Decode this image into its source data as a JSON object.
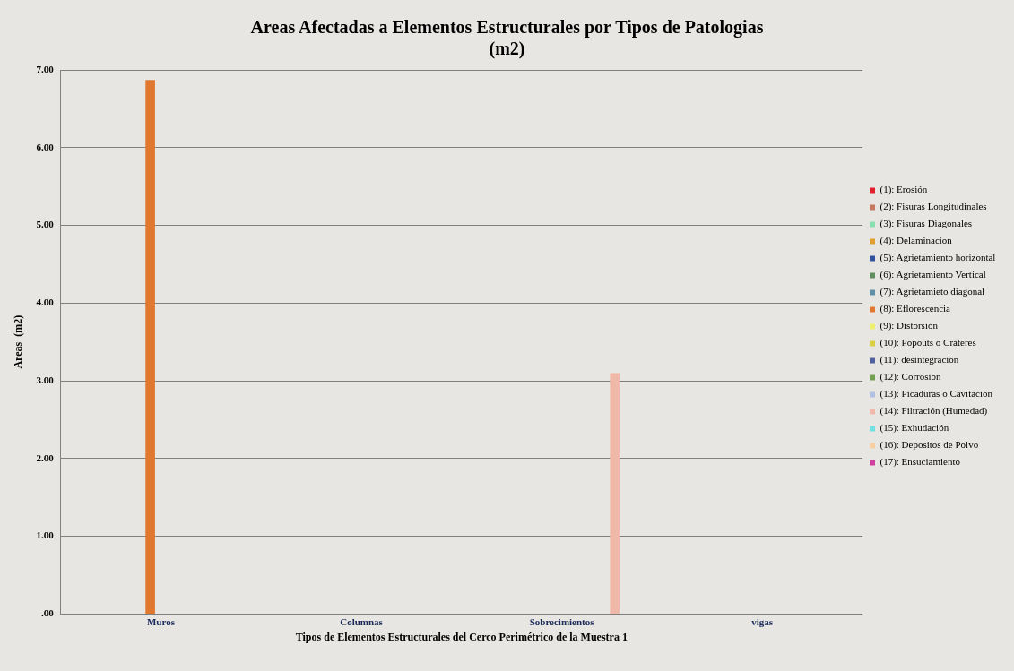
{
  "chart_data": {
    "type": "bar",
    "title": "Areas Afectadas a Elementos Estructurales por Tipos de Patologias\n(m2)",
    "xlabel": "Tipos de Elementos Estructurales del Cerco Perimétrico de la Muestra 1",
    "ylabel": "Areas  (m2)",
    "categories": [
      "Muros",
      "Columnas",
      "Sobrecimientos",
      "vigas"
    ],
    "series": [
      {
        "name": "(1): Erosión",
        "color": "#e0202c",
        "values": [
          0,
          0,
          0,
          0
        ]
      },
      {
        "name": "(2): Fisuras Longitudinales",
        "color": "#c87860",
        "values": [
          0,
          0,
          0,
          0
        ]
      },
      {
        "name": "(3): Fisuras Diagonales",
        "color": "#88e0b0",
        "values": [
          0,
          0,
          0,
          0
        ]
      },
      {
        "name": "(4): Delaminacion",
        "color": "#e0a030",
        "values": [
          0,
          0,
          0,
          0
        ]
      },
      {
        "name": "(5): Agrietamiento horizontal",
        "color": "#3050a0",
        "values": [
          0,
          0,
          0,
          0
        ]
      },
      {
        "name": "(6): Agrietamiento Vertical",
        "color": "#609060",
        "values": [
          0,
          0,
          0,
          0
        ]
      },
      {
        "name": "(7): Agrietamieto diagonal",
        "color": "#6090a8",
        "values": [
          0,
          0,
          0,
          0
        ]
      },
      {
        "name": "(8): Eflorescencia",
        "color": "#e07830",
        "values": [
          6.87,
          0,
          0,
          0
        ]
      },
      {
        "name": "(9): Distorsión",
        "color": "#f0f070",
        "values": [
          0,
          0,
          0,
          0
        ]
      },
      {
        "name": "(10): Popouts o Cráteres",
        "color": "#d8d040",
        "values": [
          0,
          0,
          0,
          0
        ]
      },
      {
        "name": "(11): desintegración",
        "color": "#5060a0",
        "values": [
          0,
          0,
          0,
          0
        ]
      },
      {
        "name": "(12): Corrosión",
        "color": "#70a050",
        "values": [
          0,
          0,
          0,
          0
        ]
      },
      {
        "name": "(13): Picaduras o Cavitación",
        "color": "#b0c0e0",
        "values": [
          0,
          0,
          0,
          0
        ]
      },
      {
        "name": "(14): Filtración (Humedad)",
        "color": "#f0b8a8",
        "values": [
          0,
          0,
          3.1,
          0
        ]
      },
      {
        "name": "(15): Exhudación",
        "color": "#70e0e0",
        "values": [
          0,
          0,
          0,
          0
        ]
      },
      {
        "name": "(16): Depositos de Polvo",
        "color": "#f8d0a0",
        "values": [
          0,
          0,
          0,
          0
        ]
      },
      {
        "name": "(17): Ensuciamiento",
        "color": "#d040a0",
        "values": [
          0,
          0,
          0,
          0
        ]
      }
    ],
    "ylim": [
      0,
      7
    ],
    "yticks": [
      {
        "value": 0,
        "label": ".00"
      },
      {
        "value": 1,
        "label": "1.00"
      },
      {
        "value": 2,
        "label": "2.00"
      },
      {
        "value": 3,
        "label": "3.00"
      },
      {
        "value": 4,
        "label": "4.00"
      },
      {
        "value": 5,
        "label": "5.00"
      },
      {
        "value": 6,
        "label": "6.00"
      },
      {
        "value": 7,
        "label": "7.00"
      }
    ],
    "grid": "y",
    "legend": "right"
  }
}
